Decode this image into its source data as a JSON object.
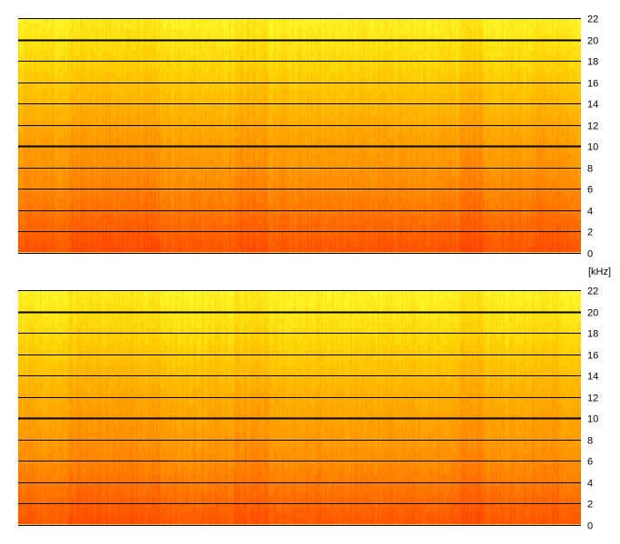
{
  "chart_data": [
    {
      "type": "heatmap",
      "title": "",
      "xlabel": "",
      "ylabel": "[kHz]",
      "ylim": [
        0,
        22
      ],
      "yticks": [
        "22",
        "20",
        "18",
        "16",
        "14",
        "12",
        "10",
        "8",
        "6",
        "4",
        "2",
        "0"
      ],
      "major_gridlines": [
        "20",
        "10"
      ],
      "grid": true,
      "colormap": [
        "#ffff33",
        "#ffd000",
        "#ffa000",
        "#ff6a00",
        "#ff3800"
      ],
      "intensity_profile_by_khz": [
        {
          "khz": 0,
          "intensity": 0.86
        },
        {
          "khz": 2,
          "intensity": 0.78
        },
        {
          "khz": 4,
          "intensity": 0.68
        },
        {
          "khz": 6,
          "intensity": 0.6
        },
        {
          "khz": 8,
          "intensity": 0.54
        },
        {
          "khz": 10,
          "intensity": 0.5
        },
        {
          "khz": 12,
          "intensity": 0.44
        },
        {
          "khz": 14,
          "intensity": 0.36
        },
        {
          "khz": 16,
          "intensity": 0.28
        },
        {
          "khz": 18,
          "intensity": 0.2
        },
        {
          "khz": 20,
          "intensity": 0.13
        },
        {
          "khz": 22,
          "intensity": 0.07
        }
      ]
    },
    {
      "type": "heatmap",
      "title": "",
      "xlabel": "",
      "ylabel": "",
      "ylim": [
        0,
        22
      ],
      "yticks": [
        "22",
        "20",
        "18",
        "16",
        "14",
        "12",
        "10",
        "8",
        "6",
        "4",
        "2",
        "0"
      ],
      "major_gridlines": [
        "20",
        "10"
      ],
      "grid": true,
      "colormap": [
        "#ffff33",
        "#ffd000",
        "#ffa000",
        "#ff6a00",
        "#ff3800"
      ],
      "intensity_profile_by_khz": [
        {
          "khz": 0,
          "intensity": 0.84
        },
        {
          "khz": 2,
          "intensity": 0.76
        },
        {
          "khz": 4,
          "intensity": 0.66
        },
        {
          "khz": 6,
          "intensity": 0.58
        },
        {
          "khz": 8,
          "intensity": 0.52
        },
        {
          "khz": 10,
          "intensity": 0.48
        },
        {
          "khz": 12,
          "intensity": 0.42
        },
        {
          "khz": 14,
          "intensity": 0.34
        },
        {
          "khz": 16,
          "intensity": 0.27
        },
        {
          "khz": 18,
          "intensity": 0.19
        },
        {
          "khz": 20,
          "intensity": 0.12
        },
        {
          "khz": 22,
          "intensity": 0.06
        }
      ]
    }
  ]
}
